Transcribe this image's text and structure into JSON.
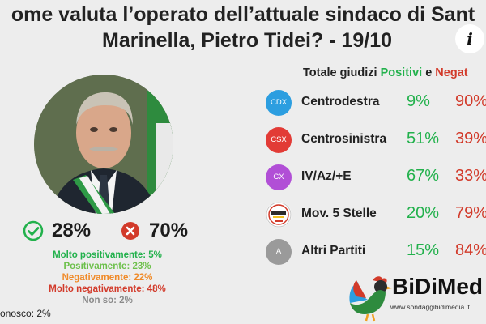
{
  "title": {
    "line1": "ome valuta l’operato dell’attuale sindaco di Sant",
    "line2": "Marinella, Pietro Tidei? - 19/10"
  },
  "info_icon": "i",
  "summary": {
    "positive_pct": "28%",
    "negative_pct": "70%",
    "positive_icon": "check-circle-icon",
    "negative_icon": "x-circle-icon",
    "positive_color": "#22b14c",
    "negative_color": "#d23a2a"
  },
  "breakdown": [
    {
      "label": "Molto positivamente: 5%",
      "color": "#22b14c"
    },
    {
      "label": "Positivamente: 23%",
      "color": "#6cc04a"
    },
    {
      "label": "Negativamente: 22%",
      "color": "#f08a28"
    },
    {
      "label": "Molto negativamente: 48%",
      "color": "#d23a2a"
    },
    {
      "label": "Non so: 2%",
      "color": "#8a8a8a"
    }
  ],
  "non_conosco": "onosco: 2%",
  "totale_header": {
    "prefix": "Totale giudizi ",
    "positivi": "Positivi",
    "e": " e ",
    "negativi": "Negat"
  },
  "chart_data": {
    "type": "table",
    "title": "ome valuta l’operato dell’attuale sindaco di Sant Marinella, Pietro Tidei? - 19/10",
    "overall": {
      "positive": 28,
      "negative": 70
    },
    "breakdown": {
      "Molto positivamente": 5,
      "Positivamente": 23,
      "Negativamente": 22,
      "Molto negativamente": 48,
      "Non so": 2,
      "Non conosco": 2
    },
    "categories": [
      "Centrodestra",
      "Centrosinistra",
      "IV/Az/+E",
      "Mov. 5 Stelle",
      "Altri Partiti"
    ],
    "series": [
      {
        "name": "Positivi",
        "values": [
          9,
          51,
          67,
          20,
          15
        ]
      },
      {
        "name": "Negativi",
        "values": [
          90,
          39,
          33,
          79,
          84
        ]
      }
    ]
  },
  "parties": [
    {
      "badge": "CDX",
      "name": "Centrodestra",
      "pos": "9%",
      "neg": "90%",
      "color": "#2c9ee0",
      "icon": "centrodestra-badge-icon"
    },
    {
      "badge": "CSX",
      "name": "Centrosinistra",
      "pos": "51%",
      "neg": "39%",
      "color": "#e23b36",
      "icon": "centrosinistra-badge-icon"
    },
    {
      "badge": "CX",
      "name": "IV/Az/+E",
      "pos": "67%",
      "neg": "33%",
      "color": "#b14fd6",
      "icon": "centro-badge-icon"
    },
    {
      "badge": "",
      "name": "Mov. 5 Stelle",
      "pos": "20%",
      "neg": "79%",
      "color": "#ffffff",
      "icon": "m5s-logo-icon"
    },
    {
      "badge": "A",
      "name": "Altri Partiti",
      "pos": "15%",
      "neg": "84%",
      "color": "#9a9a9a",
      "icon": "altri-badge-icon"
    }
  ],
  "logo": {
    "brand": "BiDiMed",
    "url": "www.sondaggibidimedia.it"
  }
}
